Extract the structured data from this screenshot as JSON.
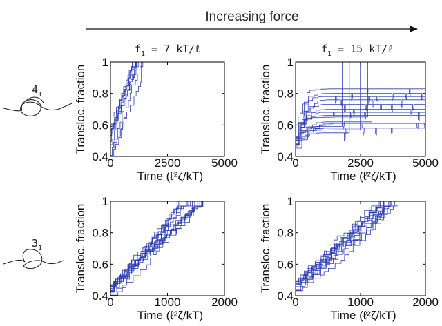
{
  "header": {
    "title": "Increasing force"
  },
  "columns": [
    {
      "main": "f",
      "sub": "1",
      "rest": " = 7 kT/ℓ"
    },
    {
      "main": "f",
      "sub": "1",
      "rest": " = 15 kT/ℓ"
    }
  ],
  "rows": [
    {
      "knot_main": "4",
      "knot_sub": "1"
    },
    {
      "knot_main": "3",
      "knot_sub": "1"
    }
  ],
  "colors": {
    "trace": "#2e3fb5",
    "axis": "#000000"
  },
  "chart_data": [
    {
      "type": "line",
      "panel": "4_1 at f1 = 7 kT/ℓ",
      "xlabel": "Time (ℓ²ζ/kT)",
      "ylabel": "Transloc. fraction",
      "xlim": [
        0,
        5000
      ],
      "ylim": [
        0.4,
        1
      ],
      "xticks": [
        0,
        2500,
        5000
      ],
      "yticks": [
        0.4,
        0.6,
        0.8,
        1
      ],
      "grid": false,
      "series_count": 10,
      "y_start_range": [
        0.4,
        0.6
      ],
      "completion_time_range": [
        950,
        1650
      ]
    },
    {
      "type": "line",
      "panel": "4_1 at f1 = 15 kT/ℓ",
      "xlabel": "Time (ℓ²ζ/kT)",
      "ylabel": "Transloc. fraction",
      "xlim": [
        0,
        5000
      ],
      "ylim": [
        0.4,
        1
      ],
      "xticks": [
        0,
        2500,
        5000
      ],
      "yticks": [
        0.4,
        0.6,
        0.8,
        1
      ],
      "grid": false,
      "series_count": 16,
      "plateau_levels": [
        0.55,
        0.57,
        0.59,
        0.6,
        0.62,
        0.65,
        0.68,
        0.7,
        0.73,
        0.76,
        0.78,
        0.8,
        0.83,
        0.58,
        0.61,
        0.66
      ],
      "y_start_range": [
        0.45,
        0.55
      ]
    },
    {
      "type": "line",
      "panel": "3_1 at f1 = 7 kT/ℓ",
      "xlabel": "Time (ℓ²ζ/kT)",
      "ylabel": "Transloc. fraction",
      "xlim": [
        0,
        2000
      ],
      "ylim": [
        0.4,
        1
      ],
      "xticks": [
        0,
        1000,
        2000
      ],
      "yticks": [
        0.4,
        0.6,
        0.8,
        1
      ],
      "grid": false,
      "series_count": 14,
      "y_start_range": [
        0.4,
        0.47
      ],
      "completion_time_range": [
        1150,
        1650
      ]
    },
    {
      "type": "line",
      "panel": "3_1 at f1 = 15 kT/ℓ",
      "xlabel": "Time (ℓ²ζ/kT)",
      "ylabel": "Transloc. fraction",
      "xlim": [
        0,
        2000
      ],
      "ylim": [
        0.4,
        1
      ],
      "xticks": [
        0,
        1000,
        2000
      ],
      "yticks": [
        0.4,
        0.6,
        0.8,
        1
      ],
      "grid": false,
      "series_count": 14,
      "y_start_range": [
        0.43,
        0.5
      ],
      "completion_time_range": [
        1250,
        1650
      ]
    }
  ]
}
